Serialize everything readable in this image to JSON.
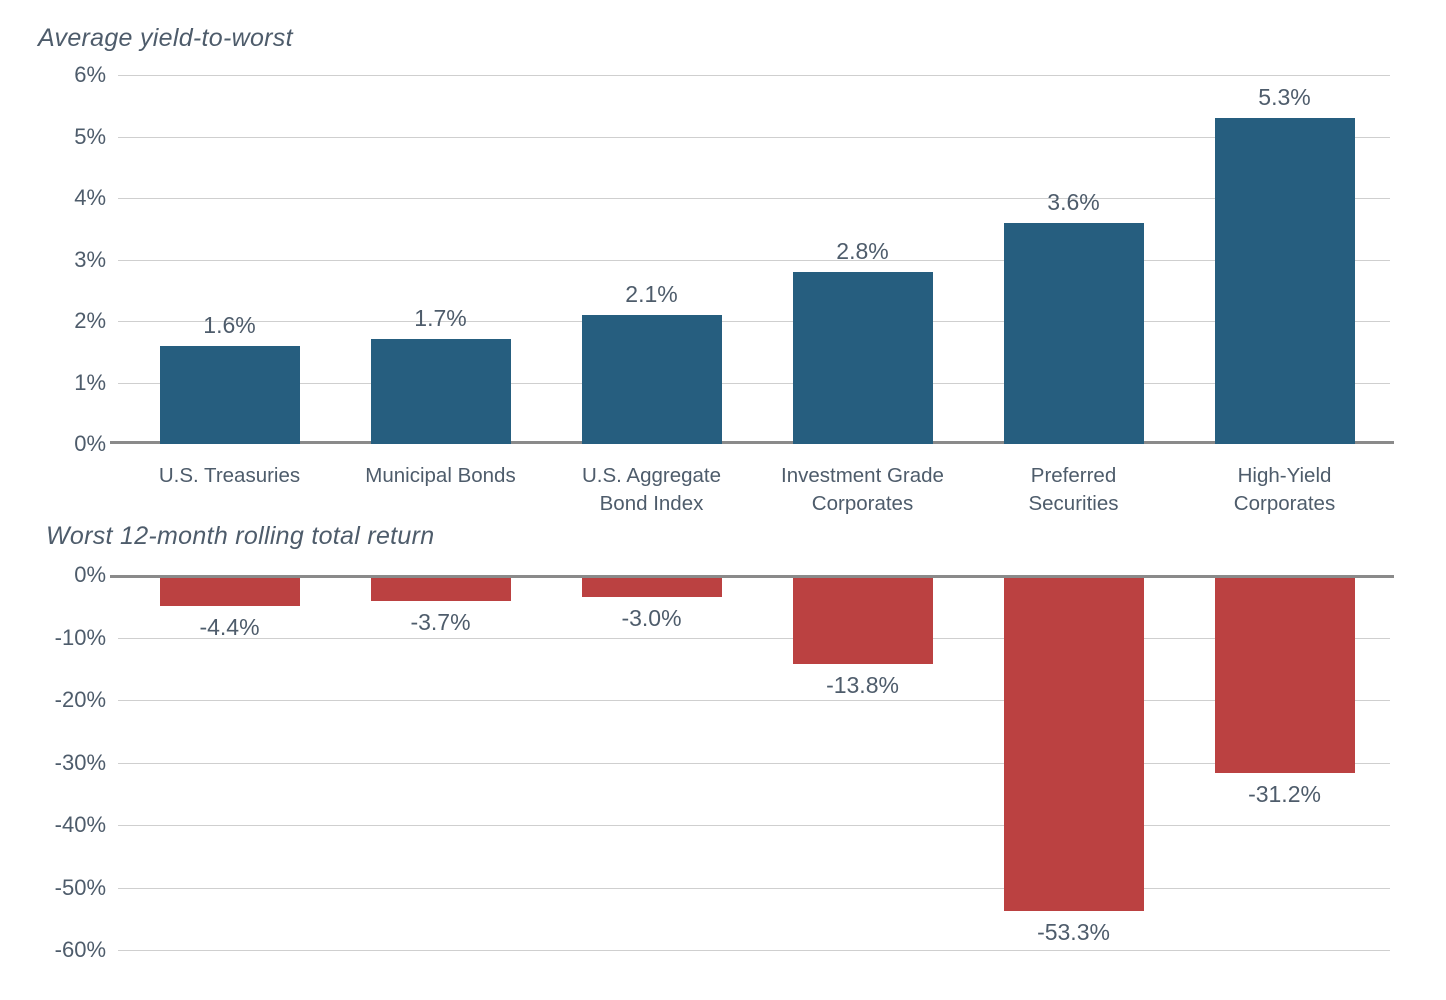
{
  "colors": {
    "bar_blue": "#265E7F",
    "bar_red": "#BB4141",
    "text": "#4E5C6B",
    "gridline": "#CFCFCF",
    "baseline": "#8A8A8A"
  },
  "chart_data": [
    {
      "type": "bar",
      "title": "Average yield-to-worst",
      "categories": [
        "U.S. Treasuries",
        "Municipal Bonds",
        "U.S. Aggregate Bond Index",
        "Investment Grade Corporates",
        "Preferred Securities",
        "High-Yield Corporates"
      ],
      "values": [
        1.6,
        1.7,
        2.1,
        2.8,
        3.6,
        5.3
      ],
      "value_labels": [
        "1.6%",
        "1.7%",
        "2.1%",
        "2.8%",
        "3.6%",
        "5.3%"
      ],
      "ylim": [
        0,
        6
      ],
      "ytick_labels": [
        "6%",
        "5%",
        "4%",
        "3%",
        "2%",
        "1%",
        "0%"
      ],
      "ytick_values": [
        6,
        5,
        4,
        3,
        2,
        1,
        0
      ],
      "grid": true,
      "legend": false,
      "bar_color_key": "bar_blue",
      "show_x_labels": true
    },
    {
      "type": "bar",
      "title": "Worst 12-month rolling total return",
      "categories": [
        "U.S. Treasuries",
        "Municipal Bonds",
        "U.S. Aggregate Bond Index",
        "Investment Grade Corporates",
        "Preferred Securities",
        "High-Yield Corporates"
      ],
      "values": [
        -4.4,
        -3.7,
        -3.0,
        -13.8,
        -53.3,
        -31.2
      ],
      "value_labels": [
        "-4.4%",
        "-3.7%",
        "-3.0%",
        "-13.8%",
        "-53.3%",
        "-31.2%"
      ],
      "ylim": [
        -60,
        0
      ],
      "ytick_labels": [
        "0%",
        "-10%",
        "-20%",
        "-30%",
        "-40%",
        "-50%",
        "-60%"
      ],
      "ytick_values": [
        0,
        -10,
        -20,
        -30,
        -40,
        -50,
        -60
      ],
      "grid": true,
      "legend": false,
      "bar_color_key": "bar_red",
      "show_x_labels": false
    }
  ]
}
